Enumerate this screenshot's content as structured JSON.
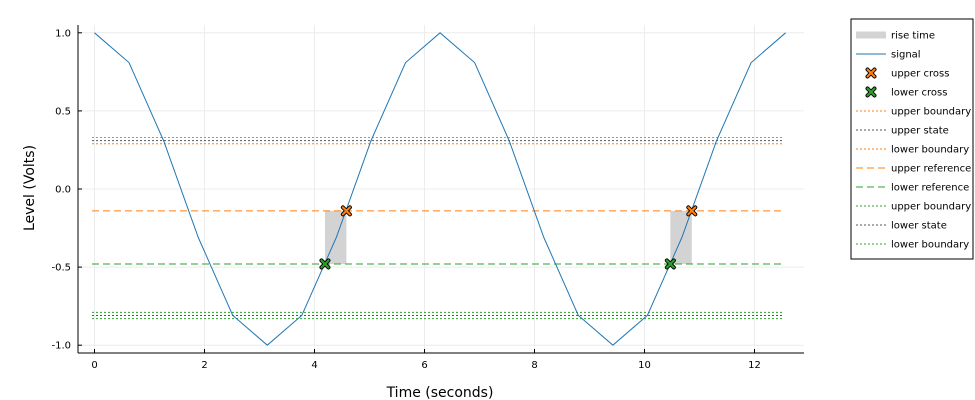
{
  "chart_data": {
    "type": "line",
    "xlabel": "Time (seconds)",
    "ylabel": "Level (Volts)",
    "xlim": [
      -0.3,
      12.9
    ],
    "ylim": [
      -1.05,
      1.05
    ],
    "x_ticks": [
      0,
      2,
      4,
      6,
      8,
      10,
      12
    ],
    "y_ticks": [
      1.0,
      0.5,
      0.0,
      -0.5,
      -1.0
    ],
    "x_tick_labels": [
      "0",
      "2",
      "4",
      "6",
      "8",
      "10",
      "12"
    ],
    "y_tick_labels": [
      "1.0",
      "0.5",
      "0.0",
      "-0.5",
      "-1.0"
    ],
    "grid": true,
    "legend_position": "outside-right",
    "signal": {
      "name": "signal",
      "color": "#1f77b4",
      "x": [
        0.0,
        0.628,
        1.257,
        1.885,
        2.513,
        3.142,
        3.77,
        4.398,
        5.027,
        5.655,
        6.283,
        6.912,
        7.54,
        8.168,
        8.796,
        9.425,
        10.053,
        10.681,
        11.31,
        11.938,
        12.566
      ],
      "y": [
        1.0,
        0.809,
        0.309,
        -0.309,
        -0.809,
        -1.0,
        -0.809,
        -0.309,
        0.309,
        0.809,
        1.0,
        0.809,
        0.309,
        -0.309,
        -0.809,
        -1.0,
        -0.809,
        -0.309,
        0.309,
        0.809,
        1.0
      ]
    },
    "rise_times": [
      {
        "x_start": 4.19,
        "x_end": 4.58,
        "y_low": -0.48,
        "y_high": -0.14
      },
      {
        "x_start": 10.47,
        "x_end": 10.86,
        "y_low": -0.48,
        "y_high": -0.14
      }
    ],
    "upper_cross": {
      "name": "upper cross",
      "color": "#ff7f0e",
      "points": [
        {
          "x": 4.58,
          "y": -0.14
        },
        {
          "x": 10.86,
          "y": -0.14
        }
      ]
    },
    "lower_cross": {
      "name": "lower cross",
      "color": "#2ca02c",
      "points": [
        {
          "x": 4.19,
          "y": -0.48
        },
        {
          "x": 10.47,
          "y": -0.48
        }
      ]
    },
    "hlines": [
      {
        "name": "upper boundary",
        "y": 0.33,
        "color": "#ff7f0e",
        "style": "dotted"
      },
      {
        "name": "upper state",
        "y": 0.31,
        "color": "#555555",
        "style": "dotted"
      },
      {
        "name": "lower boundary",
        "y": 0.29,
        "color": "#ff7f0e",
        "style": "dotted"
      },
      {
        "name": "upper reference",
        "y": -0.14,
        "color": "#ff7f0e",
        "style": "dashed"
      },
      {
        "name": "lower reference",
        "y": -0.48,
        "color": "#2ca02c",
        "style": "dashed"
      },
      {
        "name": "upper boundary",
        "y": -0.79,
        "color": "#2ca02c",
        "style": "dotted"
      },
      {
        "name": "lower state",
        "y": -0.81,
        "color": "#555555",
        "style": "dotted"
      },
      {
        "name": "lower boundary",
        "y": -0.83,
        "color": "#2ca02c",
        "style": "dotted"
      }
    ],
    "legend": [
      {
        "label": "rise time",
        "kind": "patch",
        "color": "#d3d3d3"
      },
      {
        "label": "signal",
        "kind": "line",
        "color": "#1f77b4",
        "style": "solid"
      },
      {
        "label": "upper cross",
        "kind": "marker",
        "color": "#ff7f0e"
      },
      {
        "label": "lower cross",
        "kind": "marker",
        "color": "#2ca02c"
      },
      {
        "label": "upper boundary",
        "kind": "line",
        "color": "#ff7f0e",
        "style": "dotted"
      },
      {
        "label": "upper state",
        "kind": "line",
        "color": "#555555",
        "style": "dotted"
      },
      {
        "label": "lower boundary",
        "kind": "line",
        "color": "#ff7f0e",
        "style": "dotted"
      },
      {
        "label": "upper reference",
        "kind": "line",
        "color": "#ff7f0e",
        "style": "dashed"
      },
      {
        "label": "lower reference",
        "kind": "line",
        "color": "#2ca02c",
        "style": "dashed"
      },
      {
        "label": "upper boundary",
        "kind": "line",
        "color": "#2ca02c",
        "style": "dotted"
      },
      {
        "label": "lower state",
        "kind": "line",
        "color": "#555555",
        "style": "dotted"
      },
      {
        "label": "lower boundary",
        "kind": "line",
        "color": "#2ca02c",
        "style": "dotted"
      }
    ]
  }
}
